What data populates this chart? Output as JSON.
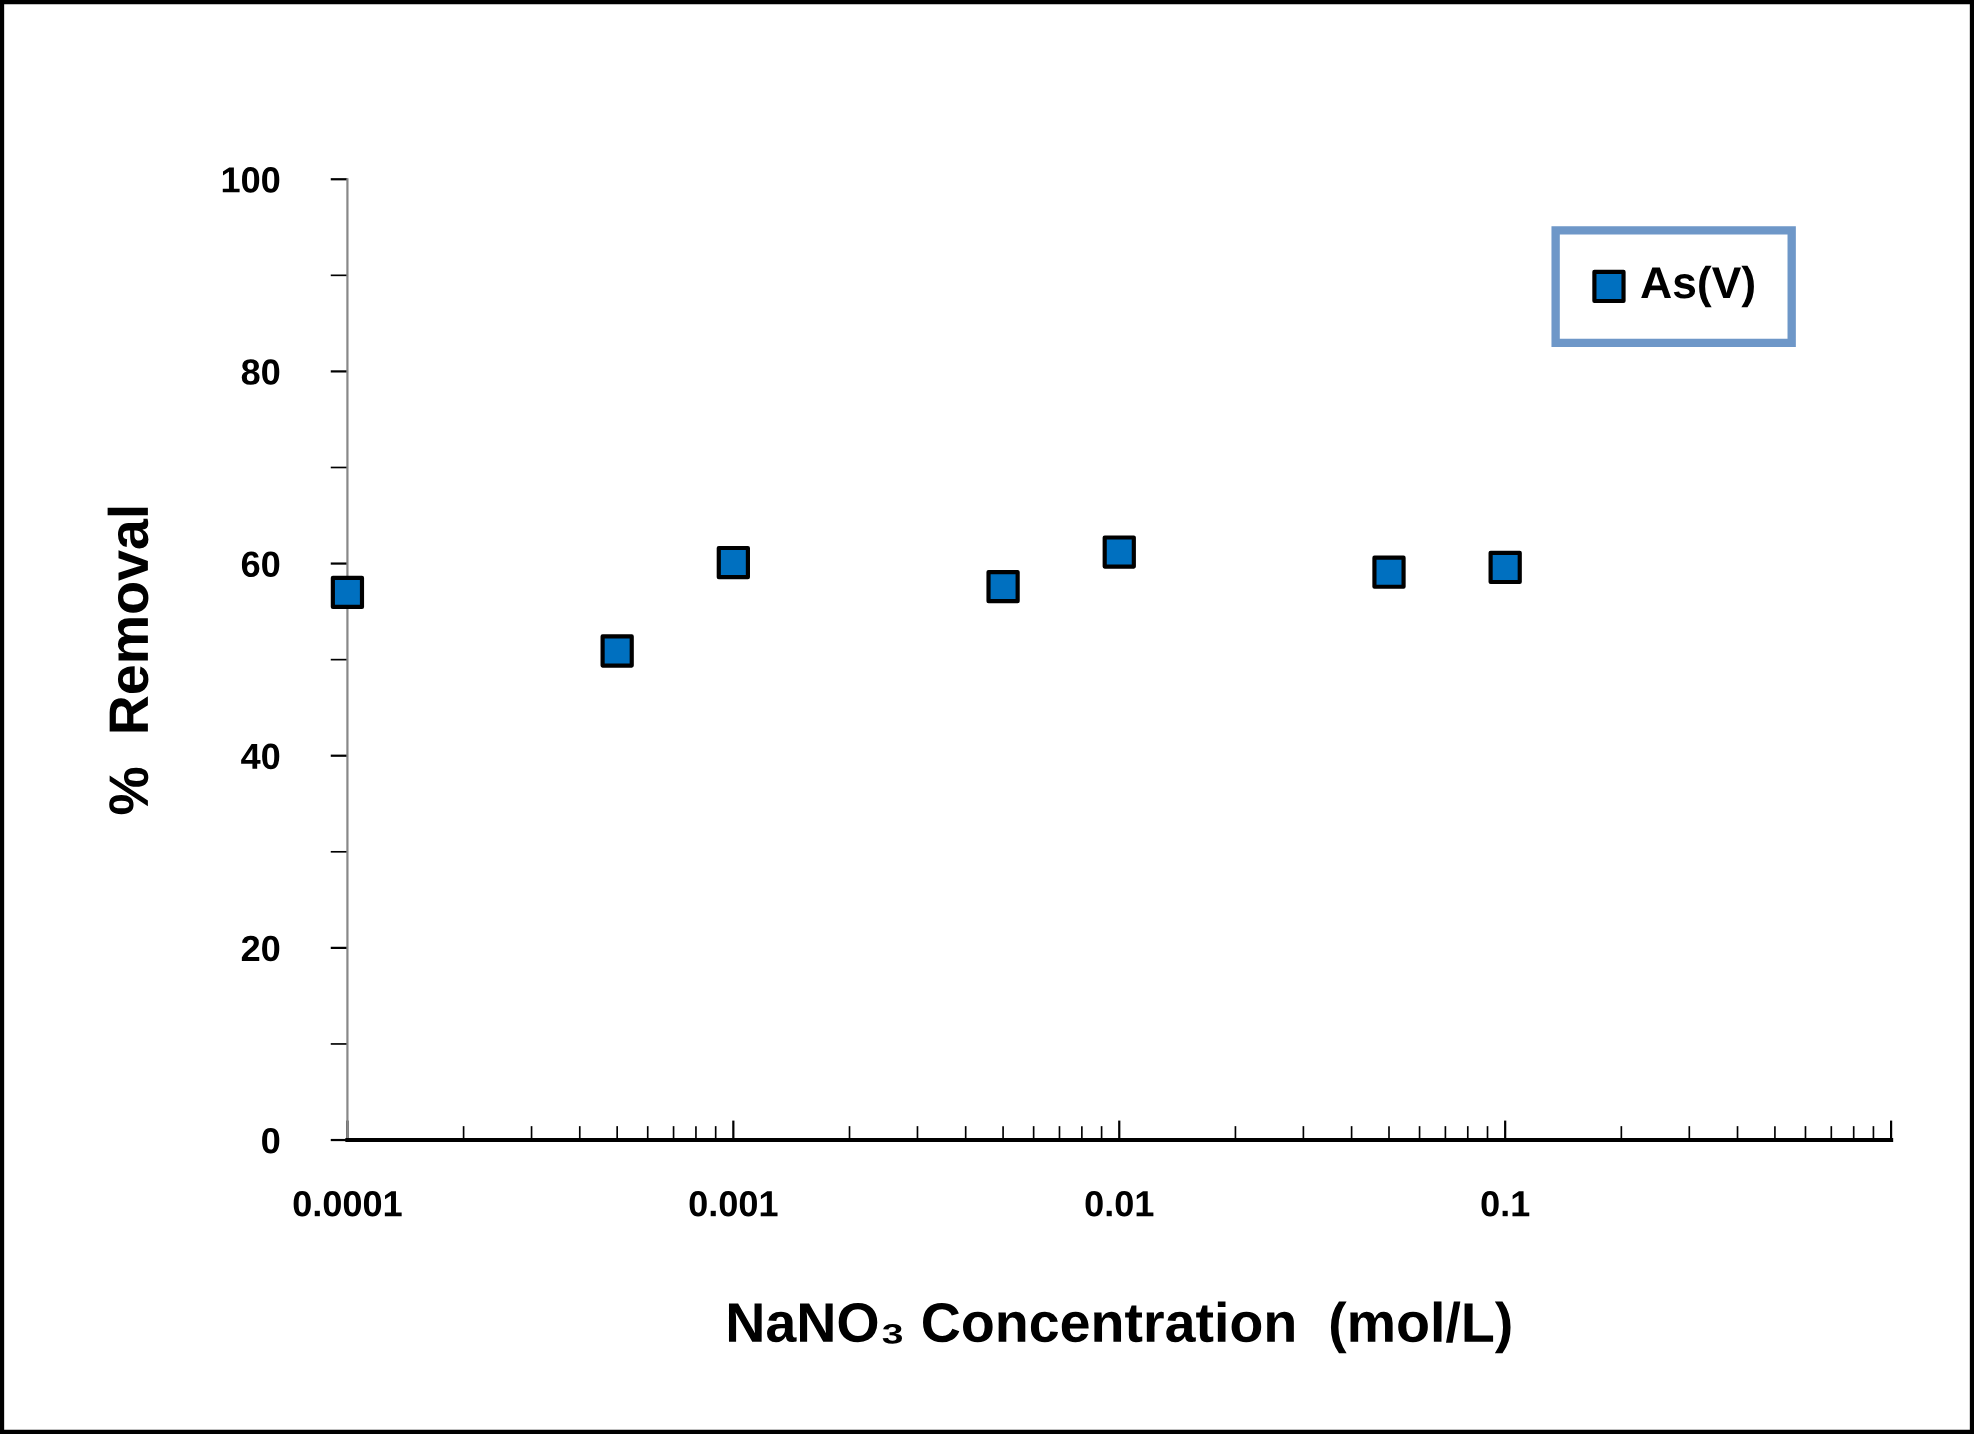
{
  "chart_data": {
    "type": "scatter",
    "xlabel": "NaNO₃ Concentration  (mol/L)",
    "ylabel": "%  Removal",
    "log": "x",
    "x": [
      0.0001,
      0.0005,
      0.001,
      0.005,
      0.01,
      0.05,
      0.1
    ],
    "series": [
      {
        "name": "As(V)",
        "color": "#0070c0",
        "values": [
          57.0,
          50.9,
          60.1,
          57.6,
          61.2,
          59.1,
          59.6
        ]
      }
    ],
    "xlim": [
      0.0001,
      1
    ],
    "xticks": [
      0.0001,
      0.001,
      0.01,
      0.1,
      {
        "value": 1,
        "label": null
      }
    ],
    "ylim": [
      0,
      100
    ],
    "yticks": [
      0,
      20,
      40,
      60,
      80,
      100
    ],
    "marker": "square",
    "grid": false,
    "legend": "top right"
  }
}
